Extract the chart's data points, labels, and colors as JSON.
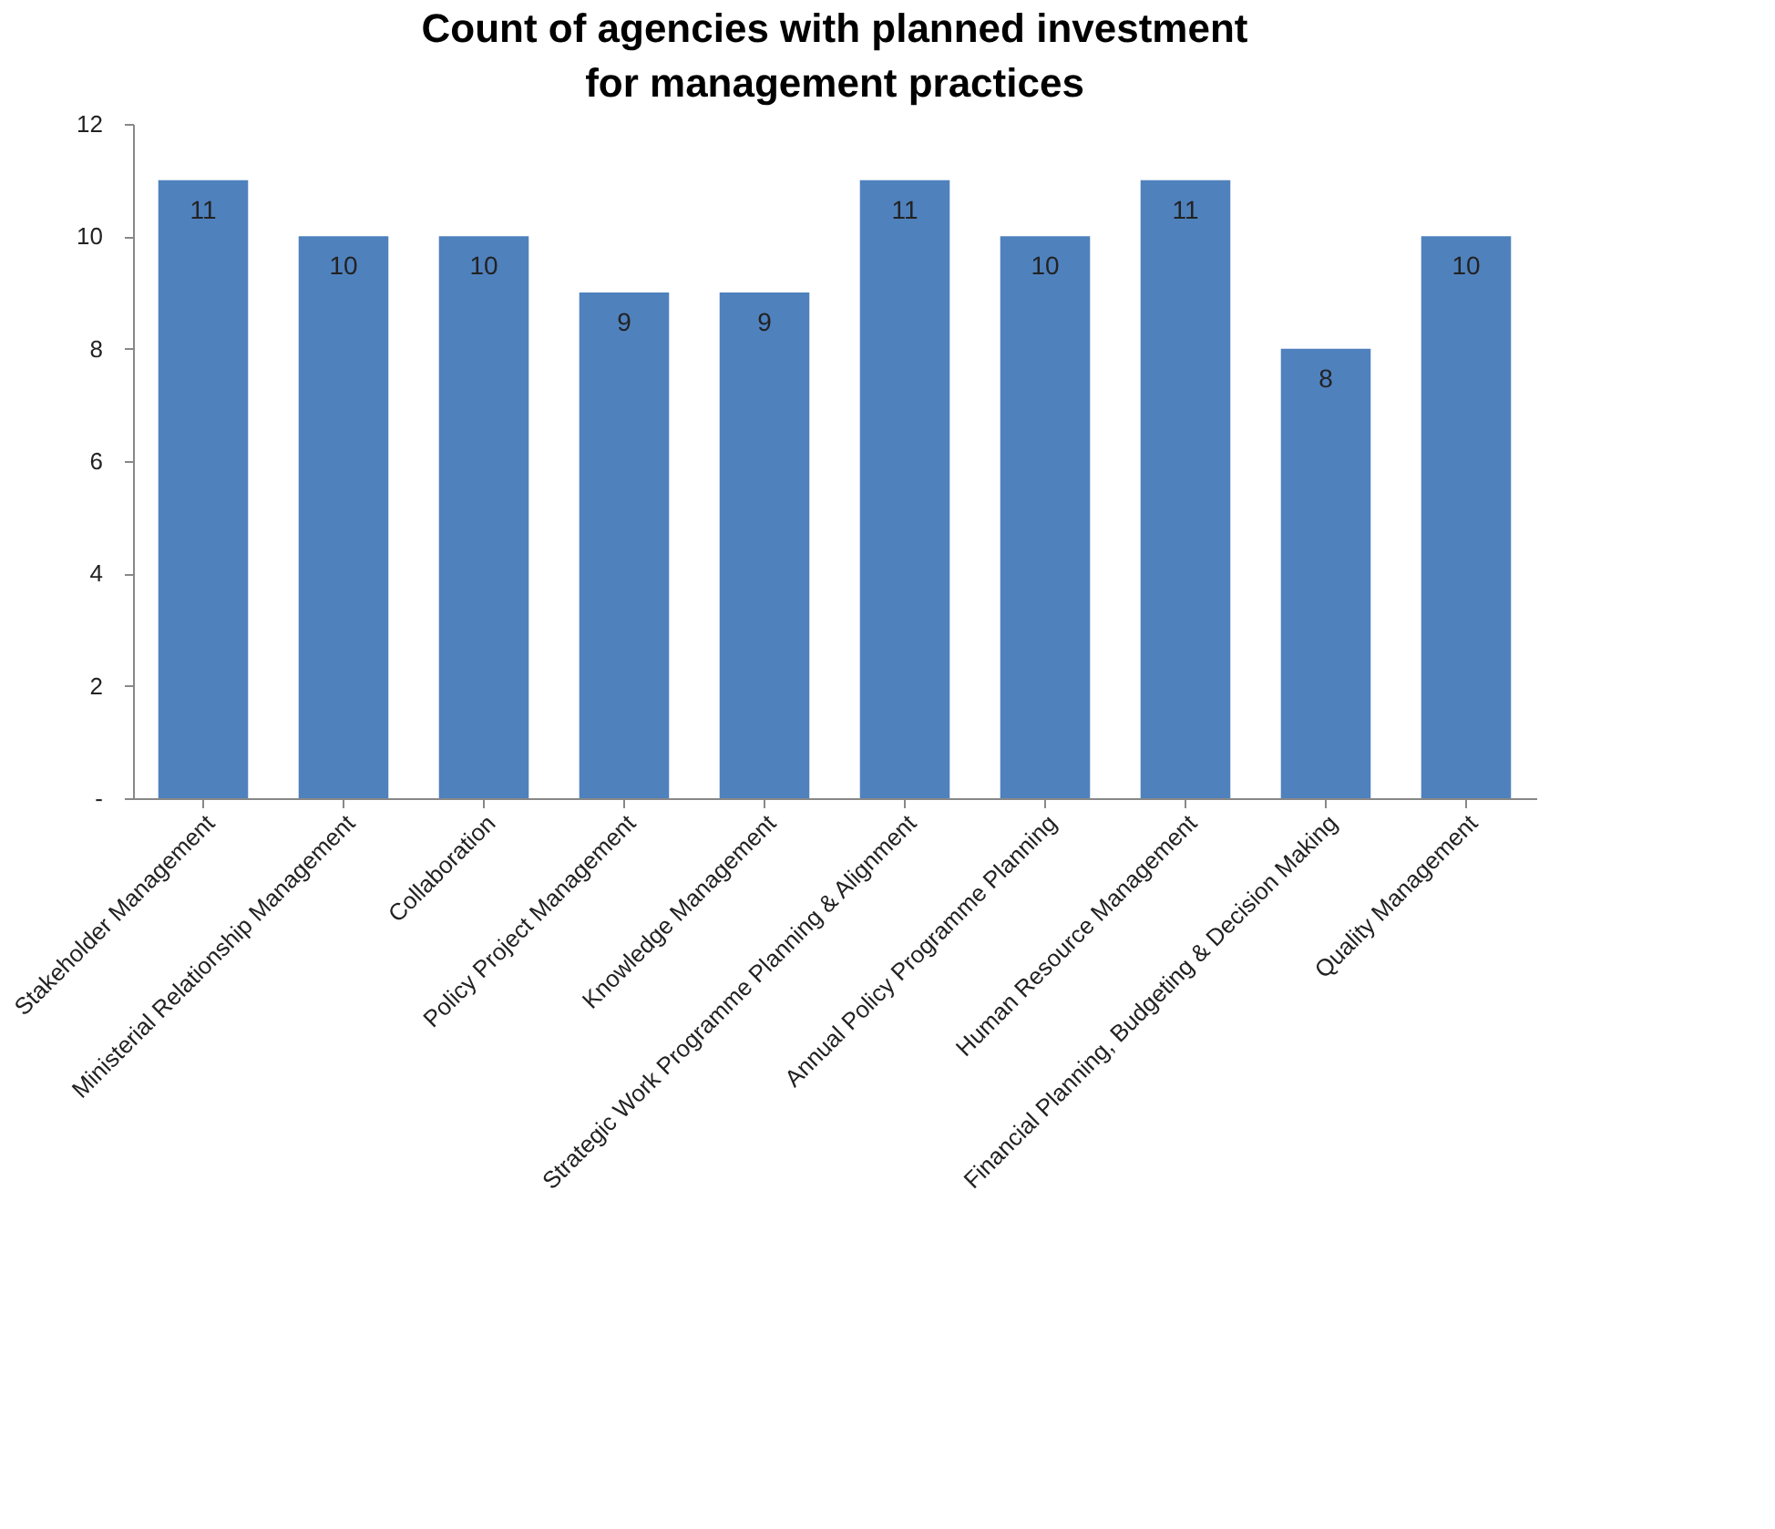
{
  "chart_data": {
    "type": "bar",
    "title": "Count of agencies with planned investment for management practices",
    "categories": [
      "Stakeholder Management",
      "Ministerial Relationship Management",
      "Collaboration",
      "Policy Project Management",
      "Knowledge Management",
      "Strategic Work Programme Planning & Alignment",
      "Annual Policy Programme Planning",
      "Human Resource Management",
      "Financial Planning, Budgeting & Decision Making",
      "Quality Management"
    ],
    "values": [
      11,
      10,
      10,
      9,
      9,
      11,
      10,
      11,
      8,
      10
    ],
    "color": "#4f81bd",
    "ylim": [
      0,
      12
    ],
    "yticks": [
      {
        "value": 0,
        "label": "-"
      },
      2,
      4,
      6,
      8,
      10,
      12
    ],
    "grid": false,
    "data_labels": true
  }
}
